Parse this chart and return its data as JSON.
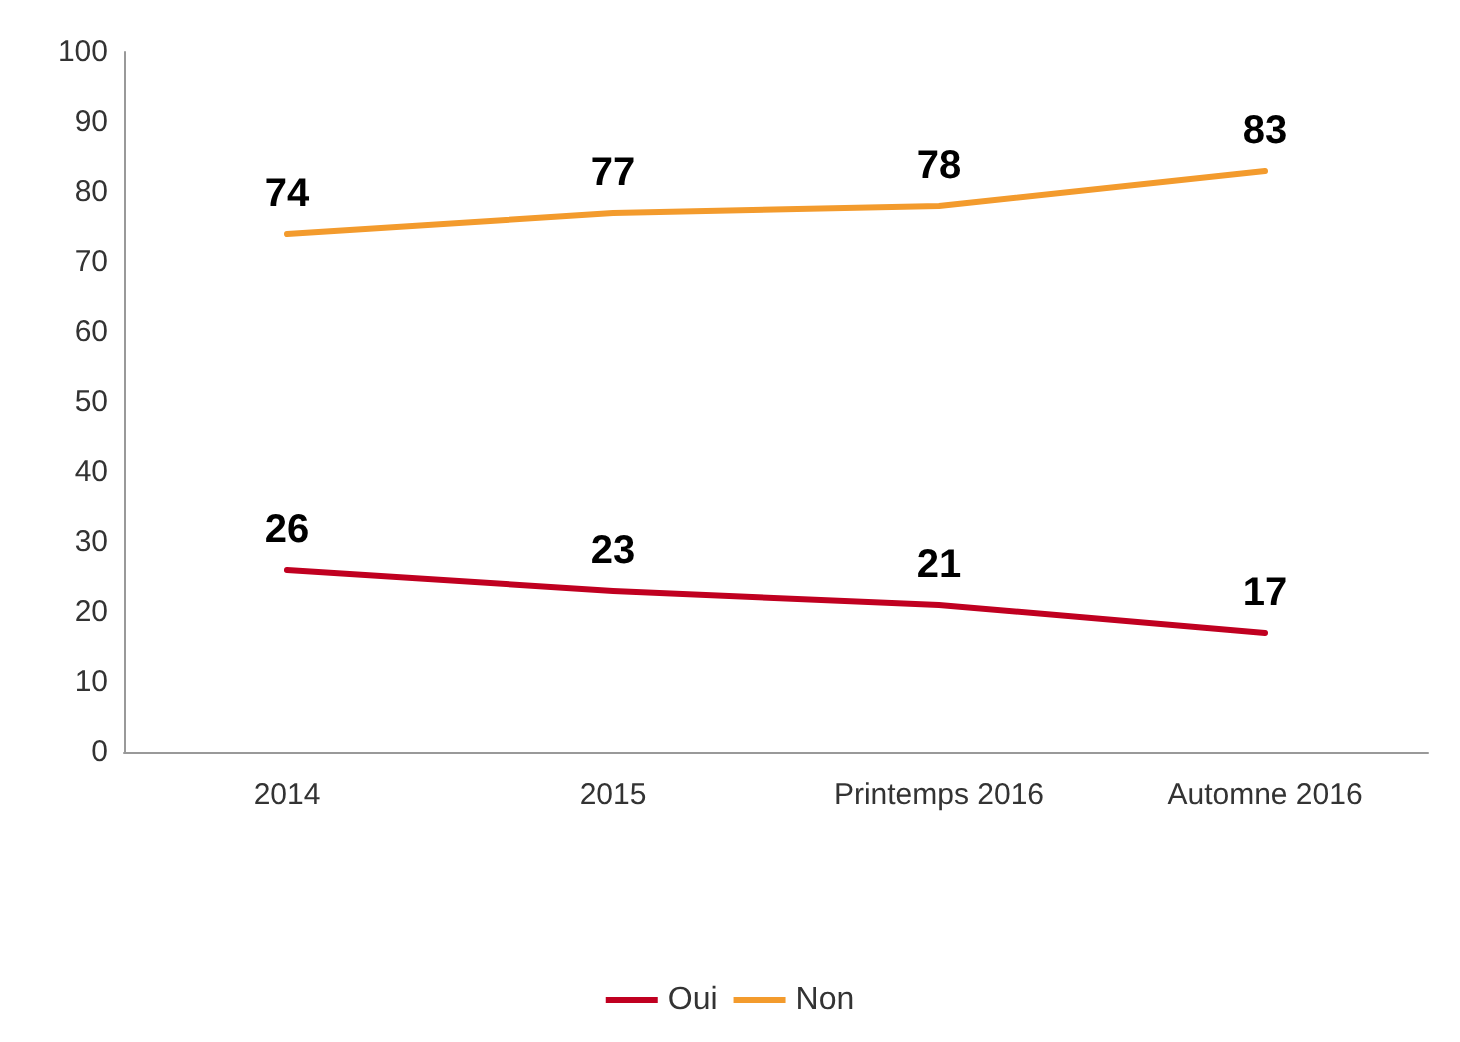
{
  "chart_data": {
    "type": "line",
    "categories": [
      "2014",
      "2015",
      "Printemps 2016",
      "Automne 2016"
    ],
    "series": [
      {
        "name": "Oui",
        "color": "#c00020",
        "values": [
          26,
          23,
          21,
          17
        ]
      },
      {
        "name": "Non",
        "color": "#f39b2d",
        "values": [
          74,
          77,
          78,
          83
        ]
      }
    ],
    "ylim": [
      0,
      100
    ],
    "yticks": [
      0,
      10,
      20,
      30,
      40,
      50,
      60,
      70,
      80,
      90,
      100
    ],
    "grid": false,
    "legend": "bottom",
    "data_labels": true,
    "marker": "none",
    "line_style": "solid"
  }
}
